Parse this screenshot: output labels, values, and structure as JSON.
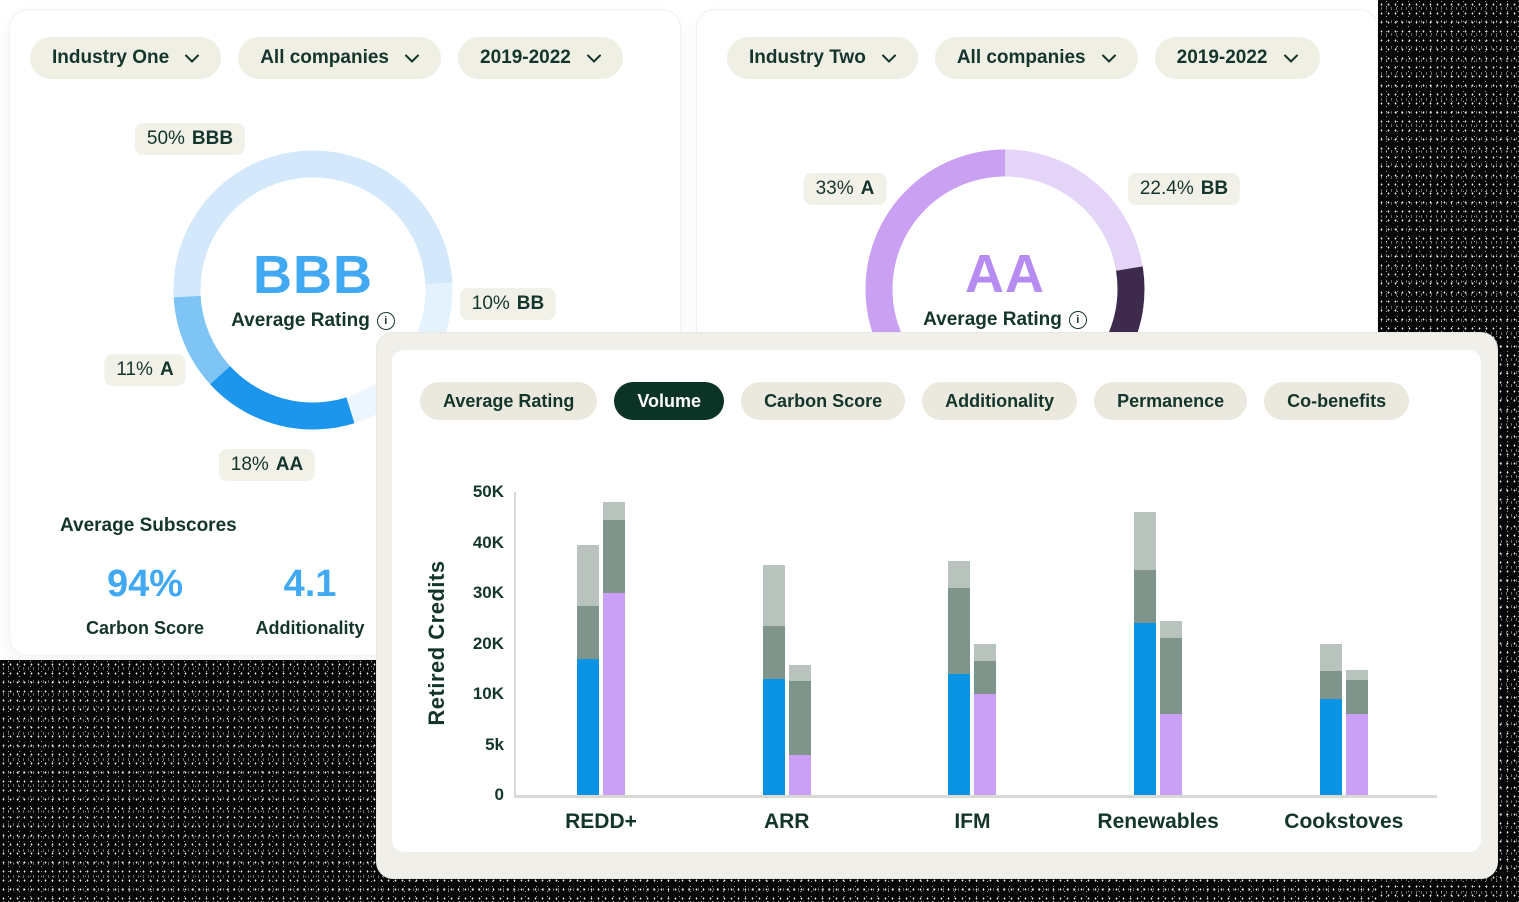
{
  "industry_one": {
    "filters": [
      "Industry One",
      "All companies",
      "2019-2022"
    ],
    "subscores": {
      "title": "Average Subscores",
      "accent": "#41a8f4",
      "items": [
        {
          "value": "94%",
          "label": "Carbon Score"
        },
        {
          "value": "4.1",
          "label": "Additionality"
        }
      ]
    }
  },
  "industry_two": {
    "filters": [
      "Industry Two",
      "All companies",
      "2019-2022"
    ]
  },
  "volume_panel": {
    "tabs": [
      {
        "label": "Average Rating",
        "active": false
      },
      {
        "label": "Volume",
        "active": true
      },
      {
        "label": "Carbon Score",
        "active": false
      },
      {
        "label": "Additionality",
        "active": false
      },
      {
        "label": "Permanence",
        "active": false
      },
      {
        "label": "Co-benefits",
        "active": false
      }
    ],
    "active_tab_color": "#0c3426"
  },
  "chart_data": [
    {
      "type": "donut",
      "title": "Industry One average rating distribution",
      "center_value": "BBB",
      "center_label": "Average Rating",
      "accent": "#41a8f4",
      "start_deg": 267,
      "segments": [
        {
          "label": "BBB",
          "pct": 50,
          "color": "#d3e9fb"
        },
        {
          "label": "BB",
          "pct": 10,
          "color": "#e4f2fd"
        },
        {
          "label": "",
          "pct": 11,
          "color": "#ecf6fe"
        },
        {
          "label": "AA",
          "pct": 18,
          "color": "#1b96ec"
        },
        {
          "label": "A",
          "pct": 11,
          "color": "#7ec5f6"
        }
      ],
      "callouts": [
        {
          "pct": "50%",
          "rating": "BBB"
        },
        {
          "pct": "10%",
          "rating": "BB"
        },
        {
          "pct": "11%",
          "rating": "A"
        },
        {
          "pct": "18%",
          "rating": "AA"
        }
      ]
    },
    {
      "type": "donut",
      "title": "Industry Two average rating distribution",
      "center_value": "AA",
      "center_label": "Average Rating",
      "accent": "#b78cf2",
      "start_deg": 0,
      "segments": [
        {
          "label": "BB",
          "pct": 22.4,
          "color": "#e4d4f8"
        },
        {
          "label": "",
          "pct": 9.6,
          "color": "#3e2a4d"
        },
        {
          "label": "AA",
          "pct": 35,
          "color": "#a87cee"
        },
        {
          "label": "A",
          "pct": 33,
          "color": "#c9a0f2"
        }
      ],
      "callouts": [
        {
          "pct": "33%",
          "rating": "A"
        },
        {
          "pct": "22.4%",
          "rating": "BB"
        }
      ]
    },
    {
      "type": "bar",
      "stacked": true,
      "title": "Volume",
      "ylabel": "Retired Credits",
      "unit": "thousands of credits",
      "ytick_labels": [
        "0",
        "5k",
        "10K",
        "20K",
        "30K",
        "40K",
        "50K"
      ],
      "ytick_values": [
        0,
        5,
        10,
        20,
        30,
        40,
        50
      ],
      "categories": [
        "REDD+",
        "ARR",
        "IFM",
        "Renewables",
        "Cookstoves"
      ],
      "stack_colors": [
        [
          "#0894e3",
          "#7f948b",
          "#b7c3bc"
        ],
        [
          "#c9a0f5",
          "#7f948b",
          "#b7c3bc"
        ]
      ],
      "groups": [
        {
          "label": "REDD+",
          "stacks": [
            [
              17,
              10.5,
              12
            ],
            [
              30,
              14.5,
              3.5
            ]
          ]
        },
        {
          "label": "ARR",
          "stacks": [
            [
              13,
              10.5,
              12
            ],
            [
              4,
              8.5,
              3.3
            ]
          ]
        },
        {
          "label": "IFM",
          "stacks": [
            [
              14,
              17,
              5.3
            ],
            [
              10,
              6.5,
              3.5
            ]
          ]
        },
        {
          "label": "Renewables",
          "stacks": [
            [
              24,
              10.5,
              11.5
            ],
            [
              8,
              13,
              3.5
            ]
          ]
        },
        {
          "label": "Cookstoves",
          "stacks": [
            [
              9.5,
              5,
              5.5
            ],
            [
              8,
              4.7,
              2
            ]
          ]
        }
      ]
    }
  ]
}
